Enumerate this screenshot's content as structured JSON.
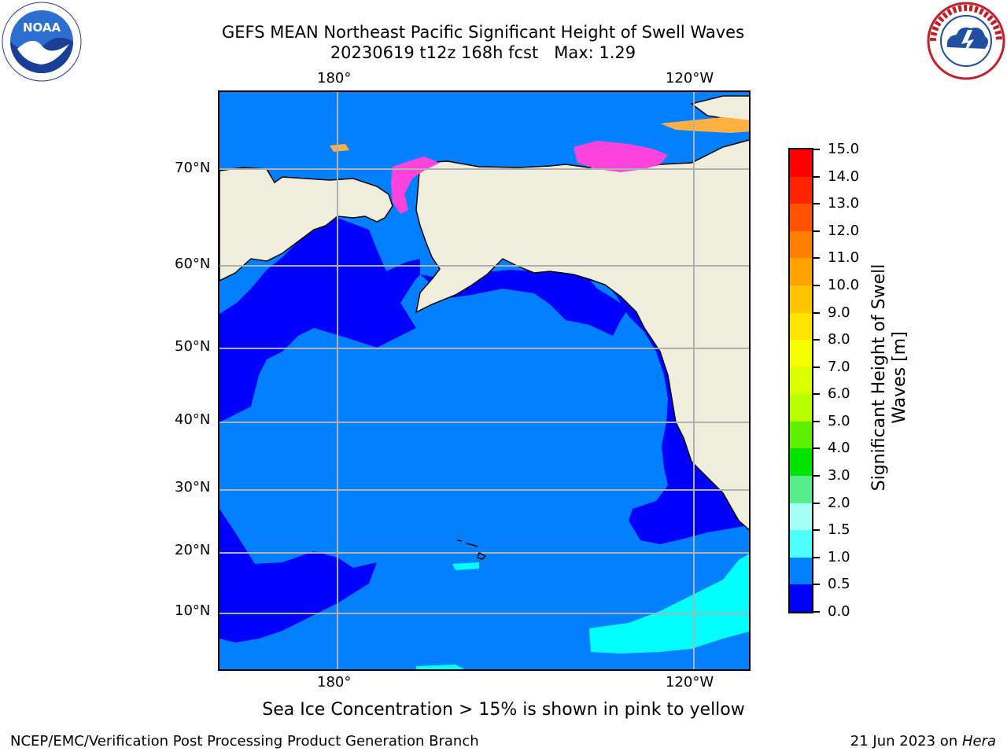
{
  "title": {
    "line1": "GEFS MEAN Northeast Pacific Significant Height of Swell Waves",
    "line2": "20230619 t12z 168h fcst   Max: 1.29"
  },
  "logos": {
    "left": "NOAA",
    "left_ring": "NATIONAL OCEANIC AND ATMOSPHERIC ADMINISTRATION · U.S. DEPARTMENT OF COMMERCE",
    "right_ring": "NATIONAL WEATHER SERVICE"
  },
  "map": {
    "lon_labels_top": [
      "180°",
      "120°W"
    ],
    "lon_labels_bottom": [
      "180°",
      "120°W"
    ],
    "lat_labels": [
      "70°N",
      "60°N",
      "50°N",
      "40°N",
      "30°N",
      "20°N",
      "10°N"
    ],
    "colors": {
      "ocean_0_05": "#0000ff",
      "ocean_05_10": "#0380ff",
      "ocean_10_15": "#00ffff",
      "land": "#efeddc",
      "grid": "#b0b0b0",
      "coast": "#000000"
    }
  },
  "colorbar": {
    "label": "Significant Height of Swell Waves [m]",
    "ticks": [
      "15.0",
      "14.0",
      "13.0",
      "12.0",
      "11.0",
      "10.0",
      "9.0",
      "8.0",
      "7.0",
      "6.0",
      "5.0",
      "4.0",
      "3.0",
      "2.0",
      "1.5",
      "1.0",
      "0.5",
      "0.0"
    ],
    "colors": [
      "#ff0000",
      "#ff2400",
      "#ff5200",
      "#ff8000",
      "#ffa200",
      "#ffc300",
      "#ffe400",
      "#f5ff00",
      "#d9ff00",
      "#b8ff00",
      "#5cf000",
      "#00e400",
      "#55ee8a",
      "#a5fff9",
      "#4dffff",
      "#00ffff",
      "#0380ff",
      "#0000ff"
    ]
  },
  "caption": "Sea Ice Concentration > 15% is shown in pink to yellow",
  "footer": {
    "left": "NCEP/EMC/Verification Post Processing Product Generation Branch",
    "right_prefix": "21 Jun 2023 on ",
    "right_machine": "Hera"
  }
}
